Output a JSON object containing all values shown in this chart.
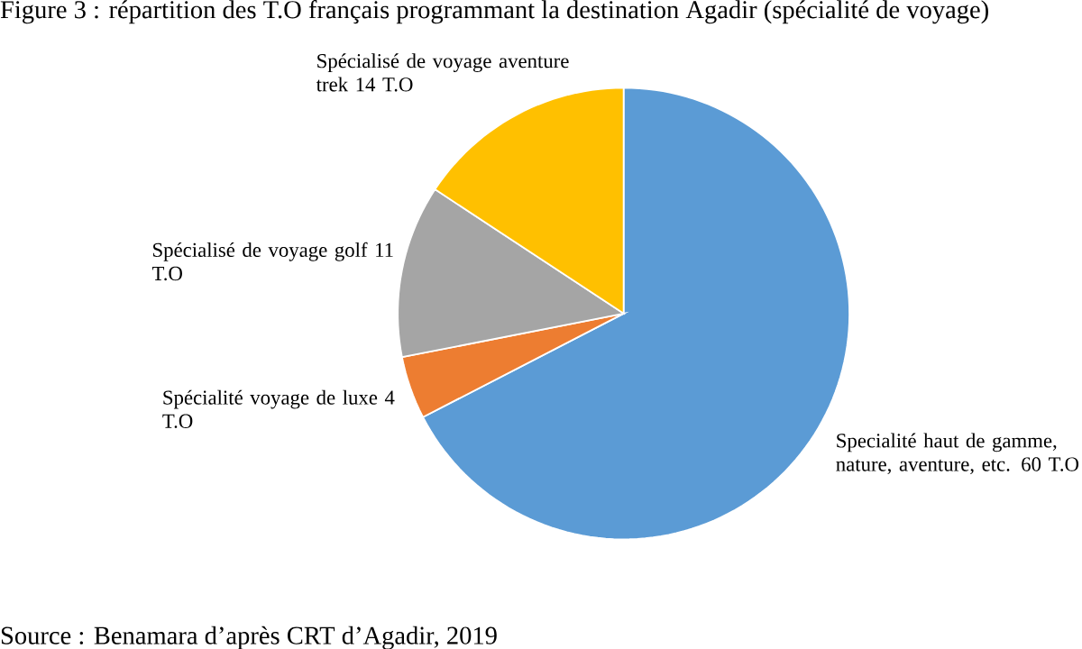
{
  "chart_data": {
    "type": "pie",
    "title": "Figure 3 : répartition des T.O français programmant la destination Agadir (spécialité de voyage)",
    "categories": [
      "Specialité haut de gamme, nature, aventure, etc.",
      "Spécialité voyage de luxe",
      "Spécialisé de voyage golf",
      "Spécialisé de voyage aventure trek"
    ],
    "values": [
      60,
      4,
      11,
      14
    ],
    "value_labels": [
      "60 T.O",
      "4 T.O",
      "11 T.O",
      "14 T.O"
    ],
    "colors": [
      "#5b9bd5",
      "#ed7d31",
      "#a5a5a5",
      "#ffc000"
    ],
    "annotations": [
      "Source : Benamara d’après CRT d’Agadir, 2019"
    ]
  }
}
